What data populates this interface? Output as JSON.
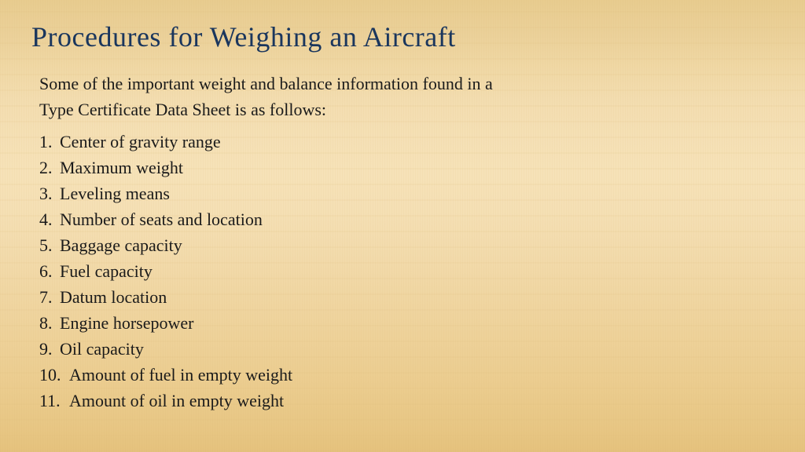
{
  "slide": {
    "title": "Procedures for Weighing an Aircraft",
    "intro": "Some of the important weight and balance  information found in a Type Certificate Data Sheet is as follows:",
    "items": [
      "Center of gravity range",
      "Maximum weight",
      "Leveling means",
      "Number of seats and location",
      "Baggage capacity",
      "Fuel capacity",
      "Datum location",
      "Engine horsepower",
      "Oil capacity",
      "Amount of fuel in empty  weight",
      "Amount of oil in empty weight"
    ],
    "colors": {
      "title_color": "#1a365d",
      "body_color": "#1a1a1a",
      "background_gradient_top": "#e8cc8f",
      "background_gradient_bottom": "#e5c27d"
    },
    "typography": {
      "title_fontsize": 36,
      "body_fontsize": 22,
      "font_family": "Georgia, Times New Roman, serif"
    }
  }
}
